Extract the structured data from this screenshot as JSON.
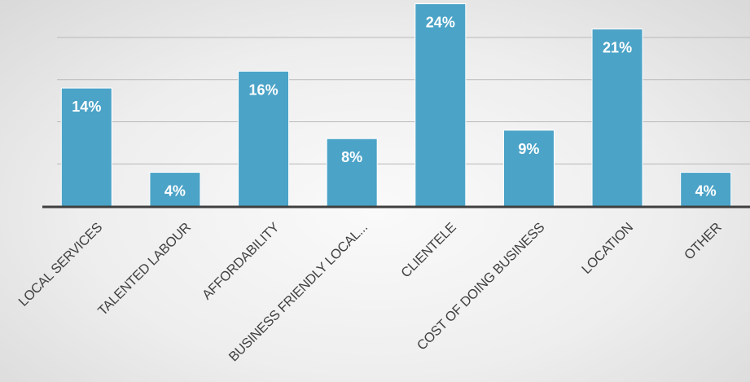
{
  "chart_data": {
    "type": "bar",
    "categories": [
      "LOCAL SERVICES",
      "TALENTED LABOUR",
      "AFFORDABILITY",
      "BUSINESS FRIENDLY LOCAL...",
      "CLIENTELE",
      "COST OF DOING BUSINESS",
      "LOCATION",
      "OTHER"
    ],
    "values": [
      14,
      4,
      16,
      8,
      24,
      9,
      21,
      4
    ],
    "data_labels": [
      "14%",
      "4%",
      "16%",
      "8%",
      "24%",
      "9%",
      "21%",
      "4%"
    ],
    "unit": "%",
    "ylim": [
      0,
      25
    ],
    "y_gridlines": [
      5,
      10,
      15,
      20
    ],
    "grid": true,
    "title": "",
    "xlabel": "",
    "ylabel": "",
    "colors": {
      "bar": "#4ba3c7",
      "bar_outline": "#ffffff",
      "grid": "#b9b9b9",
      "axis": "#3f3f3f",
      "data_label": "#ffffff",
      "tick_label": "#404040"
    }
  }
}
